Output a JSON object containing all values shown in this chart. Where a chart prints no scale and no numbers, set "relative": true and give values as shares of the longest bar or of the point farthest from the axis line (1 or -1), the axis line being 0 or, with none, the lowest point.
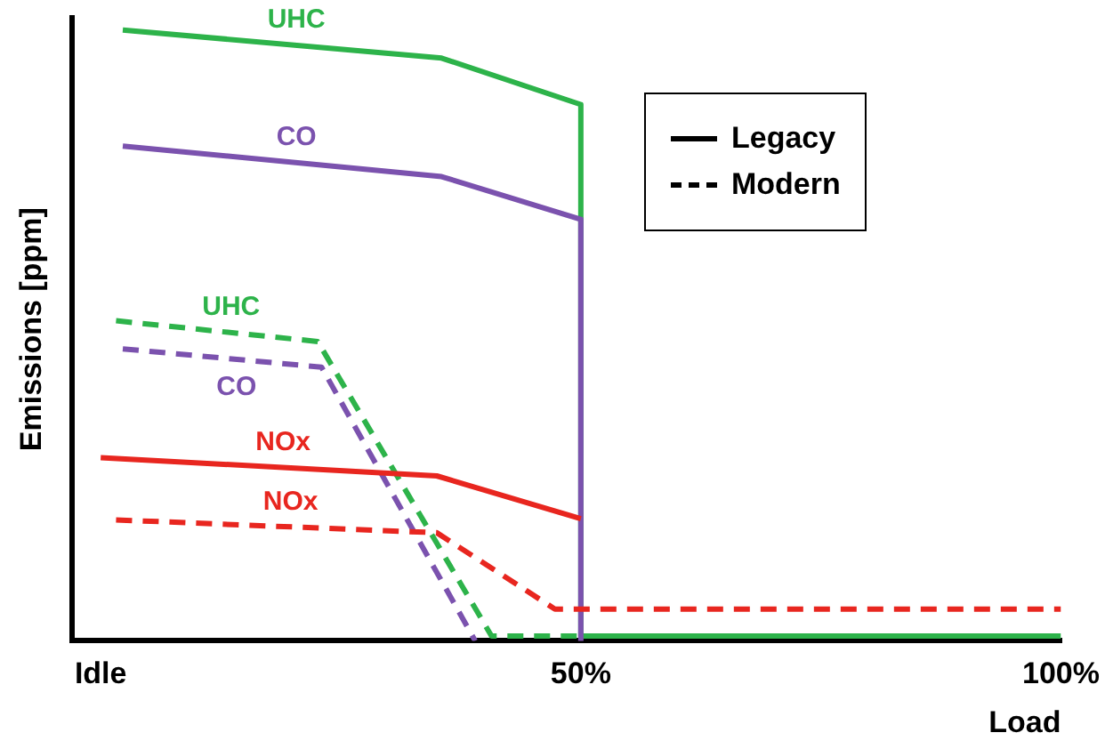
{
  "chart_data": {
    "type": "line",
    "relative": true,
    "xlabel": "Load",
    "ylabel": "Emissions [ppm]",
    "xlim": [
      -3,
      100
    ],
    "xticks": [
      {
        "value": 0,
        "label": "Idle"
      },
      {
        "value": 50,
        "label": "50%"
      },
      {
        "value": 100,
        "label": "100%"
      }
    ],
    "grid": false,
    "marker": "none",
    "annotations": [
      "Legacy",
      "Modern"
    ],
    "series": [
      {
        "name": "UHC",
        "color": "#2db34a",
        "line_style": "solid",
        "x": [
          2.3,
          35.5,
          50,
          50,
          100
        ],
        "values": [
          1.0,
          0.954,
          0.878,
          0.008,
          0.008
        ]
      },
      {
        "name": "UHC",
        "color": "#2db34a",
        "line_style": "dashed",
        "x": [
          1.6,
          22.6,
          40.7,
          50
        ],
        "values": [
          0.524,
          0.49,
          0.008,
          0.008
        ]
      },
      {
        "name": "CO",
        "color": "#7b52ae",
        "line_style": "solid",
        "x": [
          2.3,
          35.5,
          50,
          50
        ],
        "values": [
          0.81,
          0.76,
          0.69,
          0
        ]
      },
      {
        "name": "CO",
        "color": "#7b52ae",
        "line_style": "dashed",
        "x": [
          2.3,
          23,
          39
        ],
        "values": [
          0.478,
          0.448,
          0
        ]
      },
      {
        "name": "NOx",
        "color": "#e8261f",
        "line_style": "solid",
        "x": [
          0,
          35,
          50
        ],
        "values": [
          0.3,
          0.27,
          0.2
        ]
      },
      {
        "name": "NOx",
        "color": "#e8261f",
        "line_style": "dashed",
        "x": [
          1.6,
          35,
          47.3,
          100
        ],
        "values": [
          0.198,
          0.177,
          0.052,
          0.052
        ]
      }
    ]
  }
}
